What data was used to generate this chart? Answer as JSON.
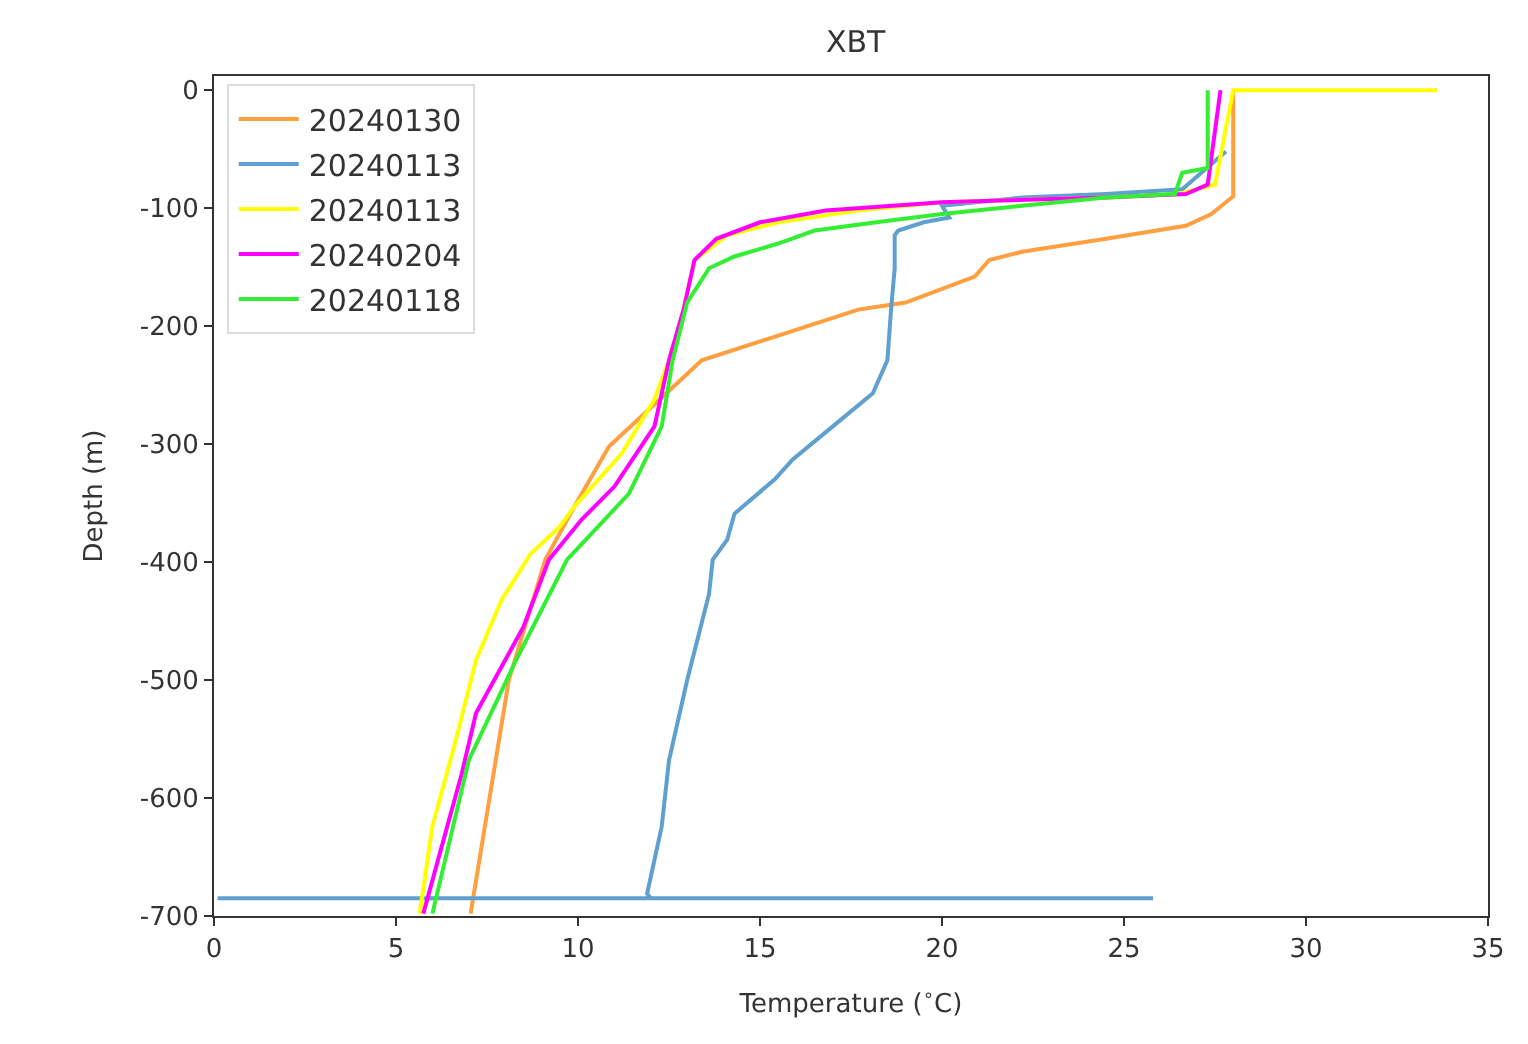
{
  "chart_data": {
    "type": "line",
    "title": "XBT",
    "xlabel": "Temperature ($^{∘}$C)",
    "ylabel": "Depth (m)",
    "xlim": [
      0,
      35
    ],
    "xticks": [
      0,
      5,
      10,
      15,
      20,
      25,
      30,
      35
    ],
    "ylim": [
      -700,
      12
    ],
    "yticks": [
      0,
      -100,
      -200,
      -300,
      -400,
      -500,
      -600,
      -700
    ],
    "legend": "top left",
    "marker": "none",
    "line_style": "solid",
    "series": [
      {
        "name": "20240130",
        "color": "#ff9f40",
        "x": [
          28.0,
          28.0,
          27.8,
          27.4,
          26.7,
          24.5,
          22.2,
          21.3,
          20.9,
          19.0,
          17.7,
          15.5,
          13.4,
          12.7,
          10.85,
          9.9,
          9.1,
          8.1,
          7.05
        ],
        "values": [
          0,
          -90,
          -95,
          -105,
          -115,
          -126,
          -137,
          -144,
          -158,
          -180,
          -186,
          -208,
          -229,
          -249,
          -302,
          -353,
          -398,
          -500,
          -698
        ]
      },
      {
        "name": "20240113",
        "color": "#5fa0d0",
        "x": [
          27.8,
          27.5,
          26.6,
          24.5,
          22.2,
          20.0,
          20.2,
          19.5,
          18.8,
          18.7,
          18.7,
          18.6,
          18.5,
          18.1,
          17.0,
          15.9,
          15.4,
          14.3,
          14.1,
          13.7,
          13.6,
          13.0,
          12.5,
          12.3,
          11.9,
          12.0,
          25.8,
          0.1
        ],
        "values": [
          -52,
          -60,
          -84,
          -88,
          -91,
          -98,
          -108,
          -112,
          -119,
          -123,
          -151,
          -186,
          -229,
          -257,
          -285,
          -313,
          -330,
          -359,
          -381,
          -398,
          -427,
          -500,
          -568,
          -624,
          -681,
          -685,
          -685,
          -685
        ]
      },
      {
        "name": "20240113",
        "color": "#ffff00",
        "x": [
          33.6,
          28.0,
          27.5,
          26.5,
          24.5,
          20.0,
          17.7,
          15.5,
          14.1,
          13.2,
          12.9,
          12.5,
          12.1,
          11.2,
          9.9,
          9.5,
          8.7,
          7.9,
          7.2,
          6.6,
          6.0,
          5.65
        ],
        "values": [
          0,
          0,
          -80,
          -88,
          -91,
          -95,
          -102,
          -112,
          -123,
          -144,
          -186,
          -229,
          -262,
          -308,
          -353,
          -370,
          -393,
          -432,
          -483,
          -556,
          -624,
          -698
        ]
      },
      {
        "name": "20240204",
        "color": "#ff00ff",
        "x": [
          27.65,
          27.3,
          26.7,
          24.5,
          20.0,
          16.8,
          15.0,
          13.8,
          13.2,
          12.9,
          12.5,
          12.1,
          11.0,
          10.1,
          9.2,
          8.5,
          7.2,
          6.8,
          5.75
        ],
        "values": [
          0,
          -80,
          -88,
          -91,
          -95,
          -102,
          -112,
          -126,
          -144,
          -186,
          -229,
          -285,
          -336,
          -364,
          -398,
          -455,
          -528,
          -580,
          -698
        ]
      },
      {
        "name": "20240118",
        "color": "#33ee33",
        "x": [
          27.3,
          27.3,
          26.6,
          26.4,
          24.5,
          22.2,
          20.0,
          18.2,
          16.5,
          15.5,
          14.3,
          13.6,
          13.0,
          12.6,
          12.3,
          11.4,
          9.7,
          8.3,
          7.0,
          6.0
        ],
        "values": [
          0,
          -66,
          -70,
          -88,
          -91,
          -98,
          -105,
          -112,
          -119,
          -130,
          -141,
          -151,
          -180,
          -229,
          -285,
          -342,
          -398,
          -483,
          -568,
          -698
        ]
      }
    ]
  }
}
